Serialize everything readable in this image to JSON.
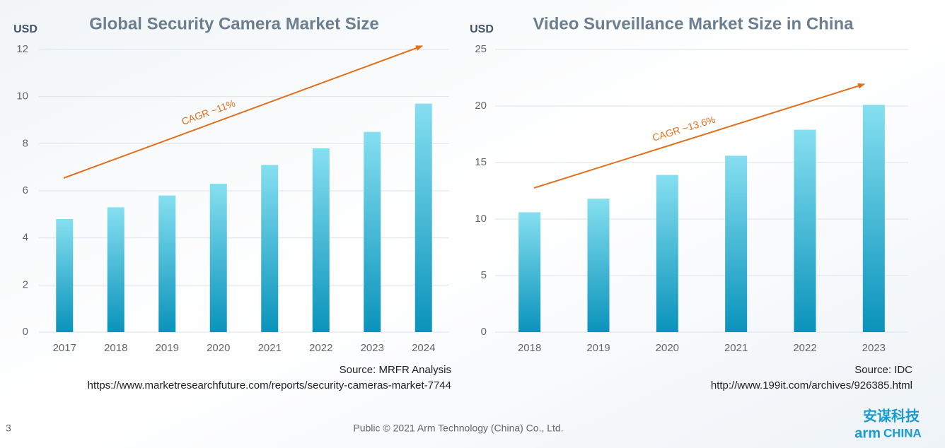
{
  "chart_data": [
    {
      "type": "bar",
      "title": "Global Security Camera Market Size",
      "y_label": "USD",
      "categories": [
        "2017",
        "2018",
        "2019",
        "2020",
        "2021",
        "2022",
        "2023",
        "2024"
      ],
      "values": [
        4.8,
        5.3,
        5.8,
        6.3,
        7.1,
        7.8,
        8.5,
        9.7
      ],
      "color": "#0a93bb",
      "ylim": [
        0,
        12
      ],
      "yticks": [
        0,
        2,
        4,
        6,
        8,
        10,
        12
      ],
      "grid": true,
      "annotation": "CAGR ~11%",
      "source": [
        "Source: MRFR Analysis",
        "https://www.marketresearchfuture.com/reports/security-cameras-market-7744"
      ]
    },
    {
      "type": "bar",
      "title": "Video Surveillance Market Size in China",
      "y_label": "USD",
      "categories": [
        "2018",
        "2019",
        "2020",
        "2021",
        "2022",
        "2023"
      ],
      "values": [
        10.6,
        11.8,
        13.9,
        15.6,
        17.9,
        20.1
      ],
      "color": "#0a93bb",
      "ylim": [
        0,
        25
      ],
      "yticks": [
        0,
        5,
        10,
        15,
        20,
        25
      ],
      "grid": true,
      "annotation": "CAGR ~13.6%",
      "source": [
        "Source: IDC",
        "http://www.199it.com/archives/926385.html"
      ]
    }
  ],
  "page_number": "3",
  "footer": "Public © 2021 Arm Technology (China) Co., Ltd.",
  "logo": {
    "chinese": "安谋科技",
    "brand": "arm",
    "region": "CHINA"
  }
}
